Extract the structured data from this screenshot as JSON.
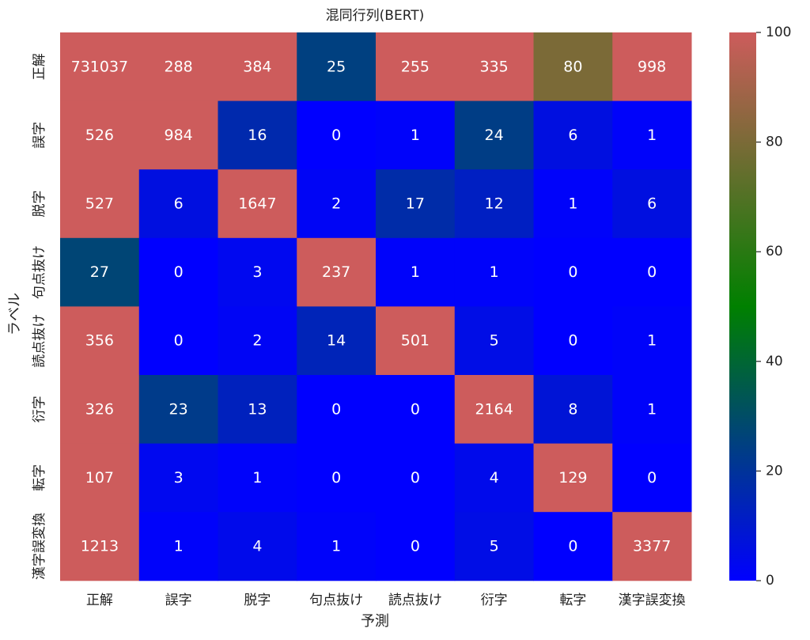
{
  "chart_data": {
    "type": "heatmap",
    "title": "混同行列(BERT)",
    "xlabel": "予測",
    "ylabel": "ラベル",
    "x_categories": [
      "正解",
      "誤字",
      "脱字",
      "句点抜け",
      "読点抜け",
      "衍字",
      "転字",
      "漢字誤変換"
    ],
    "y_categories": [
      "正解",
      "誤字",
      "脱字",
      "句点抜け",
      "読点抜け",
      "衍字",
      "転字",
      "漢字誤変換"
    ],
    "values": [
      [
        731037,
        288,
        384,
        25,
        255,
        335,
        80,
        998
      ],
      [
        526,
        984,
        16,
        0,
        1,
        24,
        6,
        1
      ],
      [
        527,
        6,
        1647,
        2,
        17,
        12,
        1,
        6
      ],
      [
        27,
        0,
        3,
        237,
        1,
        1,
        0,
        0
      ],
      [
        356,
        0,
        2,
        14,
        501,
        5,
        0,
        1
      ],
      [
        326,
        23,
        13,
        0,
        0,
        2164,
        8,
        1
      ],
      [
        107,
        3,
        1,
        0,
        0,
        4,
        129,
        0
      ],
      [
        1213,
        1,
        4,
        1,
        0,
        5,
        0,
        3377
      ]
    ],
    "color_range": [
      0,
      100
    ],
    "colormap": [
      "#0000ff",
      "#008000",
      "#cd5c5c"
    ],
    "colorbar_ticks": [
      0,
      20,
      40,
      60,
      80,
      100
    ],
    "legend_position": "right"
  }
}
